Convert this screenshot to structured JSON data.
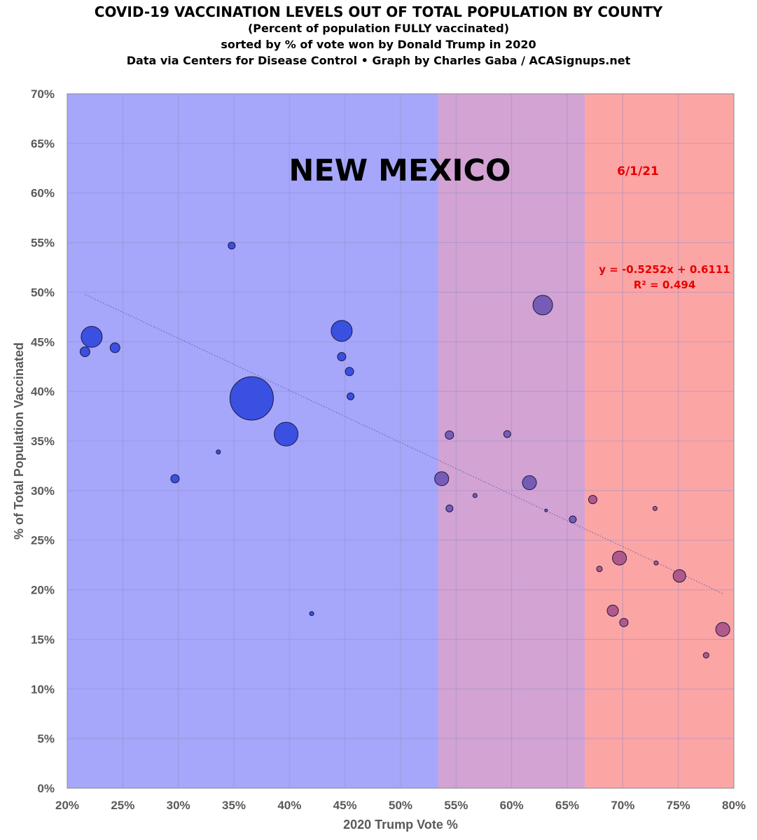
{
  "header": {
    "title": "COVID-19 VACCINATION LEVELS OUT OF TOTAL POPULATION BY COUNTY",
    "subtitle": "(Percent of population FULLY vaccinated)",
    "sort_note": "sorted by % of vote won by Donald Trump in 2020",
    "credit": "Data via Centers for Disease Control • Graph by Charles Gaba / ACASignups.net"
  },
  "colors": {
    "blue_region": "#a6a6fa",
    "purple_region": "#d3a3d3",
    "red_region": "#fca5a5",
    "blue_point": "#2b44dd",
    "purple_point": "#6a52b3",
    "red_point": "#a64f86",
    "trendline": "#5d5da8",
    "annotation": "#e60000"
  },
  "chart_data": {
    "type": "scatter",
    "title": "NEW MEXICO",
    "date_label": "6/1/21",
    "xlabel": "2020 Trump Vote %",
    "ylabel": "% of Total Population Vaccinated",
    "xlim": [
      0.2,
      0.8
    ],
    "ylim": [
      0,
      0.7
    ],
    "x_ticks": [
      "20%",
      "25%",
      "30%",
      "35%",
      "40%",
      "45%",
      "50%",
      "55%",
      "60%",
      "65%",
      "70%",
      "75%",
      "80%"
    ],
    "y_ticks": [
      "0%",
      "5%",
      "10%",
      "15%",
      "20%",
      "25%",
      "30%",
      "35%",
      "40%",
      "45%",
      "50%",
      "55%",
      "60%",
      "65%",
      "70%"
    ],
    "regions": [
      {
        "name": "blue",
        "from": 0.2,
        "to": 0.534
      },
      {
        "name": "purple",
        "from": 0.534,
        "to": 0.666
      },
      {
        "name": "red",
        "from": 0.666,
        "to": 0.8
      }
    ],
    "trendline": {
      "equation": "y = -0.5252x + 0.6111",
      "r_squared": "R² = 0.494",
      "slope": -0.5252,
      "intercept": 0.6111,
      "x_range": [
        0.216,
        0.79
      ]
    },
    "points": [
      {
        "x": 0.216,
        "y": 0.44,
        "r": 7
      },
      {
        "x": 0.222,
        "y": 0.455,
        "r": 15
      },
      {
        "x": 0.243,
        "y": 0.444,
        "r": 7
      },
      {
        "x": 0.297,
        "y": 0.312,
        "r": 6
      },
      {
        "x": 0.336,
        "y": 0.339,
        "r": 3
      },
      {
        "x": 0.348,
        "y": 0.547,
        "r": 5
      },
      {
        "x": 0.366,
        "y": 0.393,
        "r": 31
      },
      {
        "x": 0.397,
        "y": 0.357,
        "r": 17
      },
      {
        "x": 0.42,
        "y": 0.176,
        "r": 3
      },
      {
        "x": 0.447,
        "y": 0.461,
        "r": 15
      },
      {
        "x": 0.447,
        "y": 0.435,
        "r": 6
      },
      {
        "x": 0.454,
        "y": 0.42,
        "r": 6
      },
      {
        "x": 0.455,
        "y": 0.395,
        "r": 5
      },
      {
        "x": 0.537,
        "y": 0.312,
        "r": 10
      },
      {
        "x": 0.544,
        "y": 0.356,
        "r": 6
      },
      {
        "x": 0.544,
        "y": 0.282,
        "r": 5
      },
      {
        "x": 0.567,
        "y": 0.295,
        "r": 3
      },
      {
        "x": 0.596,
        "y": 0.357,
        "r": 5
      },
      {
        "x": 0.616,
        "y": 0.308,
        "r": 10
      },
      {
        "x": 0.628,
        "y": 0.487,
        "r": 14
      },
      {
        "x": 0.631,
        "y": 0.28,
        "r": 2
      },
      {
        "x": 0.655,
        "y": 0.271,
        "r": 5
      },
      {
        "x": 0.673,
        "y": 0.291,
        "r": 6
      },
      {
        "x": 0.679,
        "y": 0.221,
        "r": 4
      },
      {
        "x": 0.691,
        "y": 0.179,
        "r": 8
      },
      {
        "x": 0.697,
        "y": 0.232,
        "r": 10
      },
      {
        "x": 0.701,
        "y": 0.167,
        "r": 6
      },
      {
        "x": 0.729,
        "y": 0.282,
        "r": 3
      },
      {
        "x": 0.73,
        "y": 0.227,
        "r": 3
      },
      {
        "x": 0.751,
        "y": 0.214,
        "r": 9
      },
      {
        "x": 0.775,
        "y": 0.134,
        "r": 4
      },
      {
        "x": 0.79,
        "y": 0.16,
        "r": 10
      }
    ]
  }
}
